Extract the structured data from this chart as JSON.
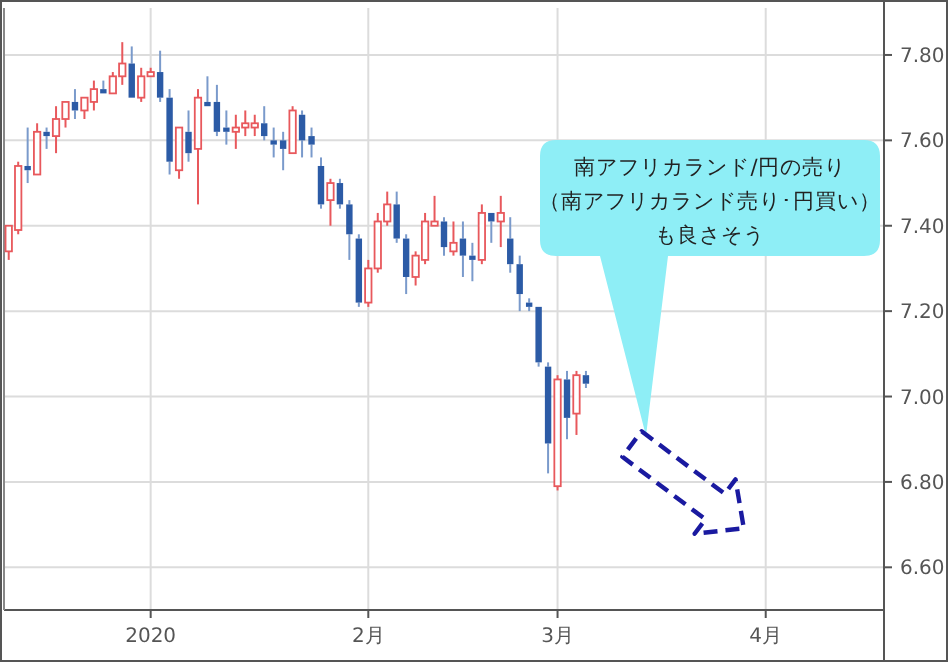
{
  "chart_data": {
    "type": "candlestick",
    "categories": [
      null,
      null,
      null,
      null,
      null,
      null,
      null,
      null,
      null,
      null,
      null,
      null,
      null,
      null,
      null,
      "2020",
      null,
      null,
      null,
      null,
      null,
      null,
      null,
      null,
      null,
      null,
      null,
      null,
      null,
      null,
      null,
      null,
      null,
      null,
      null,
      null,
      null,
      null,
      "2月",
      null,
      null,
      null,
      null,
      null,
      null,
      null,
      null,
      null,
      null,
      null,
      null,
      null,
      null,
      null,
      null,
      null,
      null,
      null,
      "3月",
      null,
      null,
      null,
      null,
      null,
      null,
      null,
      null,
      null,
      null,
      null,
      null,
      null,
      null,
      null,
      null,
      null,
      null,
      null,
      null,
      null,
      "4月",
      null,
      null,
      null,
      null,
      null,
      null,
      null,
      null,
      null,
      null,
      null,
      null
    ],
    "ohlc": [
      [
        7.34,
        7.4,
        7.32,
        7.4
      ],
      [
        7.39,
        7.55,
        7.38,
        7.54
      ],
      [
        7.54,
        7.63,
        7.5,
        7.53
      ],
      [
        7.52,
        7.64,
        7.52,
        7.62
      ],
      [
        7.62,
        7.63,
        7.58,
        7.61
      ],
      [
        7.61,
        7.68,
        7.57,
        7.65
      ],
      [
        7.65,
        7.69,
        7.63,
        7.69
      ],
      [
        7.69,
        7.72,
        7.65,
        7.67
      ],
      [
        7.67,
        7.7,
        7.65,
        7.7
      ],
      [
        7.69,
        7.74,
        7.67,
        7.72
      ],
      [
        7.72,
        7.74,
        7.71,
        7.71
      ],
      [
        7.71,
        7.76,
        7.71,
        7.75
      ],
      [
        7.75,
        7.83,
        7.73,
        7.78
      ],
      [
        7.78,
        7.82,
        7.7,
        7.7
      ],
      [
        7.7,
        7.77,
        7.69,
        7.75
      ],
      [
        7.75,
        7.77,
        7.75,
        7.76
      ],
      [
        7.76,
        7.81,
        7.69,
        7.7
      ],
      [
        7.7,
        7.72,
        7.52,
        7.55
      ],
      [
        7.53,
        7.63,
        7.51,
        7.63
      ],
      [
        7.62,
        7.67,
        7.55,
        7.57
      ],
      [
        7.58,
        7.72,
        7.45,
        7.7
      ],
      [
        7.69,
        7.75,
        7.68,
        7.68
      ],
      [
        7.69,
        7.73,
        7.61,
        7.62
      ],
      [
        7.63,
        7.67,
        7.59,
        7.62
      ],
      [
        7.62,
        7.66,
        7.58,
        7.63
      ],
      [
        7.63,
        7.67,
        7.61,
        7.64
      ],
      [
        7.63,
        7.66,
        7.61,
        7.64
      ],
      [
        7.64,
        7.68,
        7.6,
        7.61
      ],
      [
        7.6,
        7.63,
        7.56,
        7.59
      ],
      [
        7.6,
        7.62,
        7.53,
        7.58
      ],
      [
        7.57,
        7.68,
        7.57,
        7.67
      ],
      [
        7.66,
        7.67,
        7.56,
        7.6
      ],
      [
        7.61,
        7.63,
        7.56,
        7.59
      ],
      [
        7.54,
        7.56,
        7.44,
        7.45
      ],
      [
        7.46,
        7.51,
        7.4,
        7.5
      ],
      [
        7.5,
        7.51,
        7.44,
        7.45
      ],
      [
        7.45,
        7.46,
        7.32,
        7.38
      ],
      [
        7.37,
        7.38,
        7.21,
        7.22
      ],
      [
        7.22,
        7.32,
        7.21,
        7.3
      ],
      [
        7.3,
        7.43,
        7.29,
        7.41
      ],
      [
        7.41,
        7.48,
        7.4,
        7.45
      ],
      [
        7.45,
        7.48,
        7.36,
        7.37
      ],
      [
        7.37,
        7.38,
        7.24,
        7.28
      ],
      [
        7.28,
        7.34,
        7.26,
        7.33
      ],
      [
        7.32,
        7.43,
        7.31,
        7.41
      ],
      [
        7.4,
        7.47,
        7.4,
        7.41
      ],
      [
        7.41,
        7.42,
        7.33,
        7.35
      ],
      [
        7.34,
        7.41,
        7.33,
        7.36
      ],
      [
        7.37,
        7.41,
        7.28,
        7.33
      ],
      [
        7.33,
        7.36,
        7.27,
        7.32
      ],
      [
        7.32,
        7.45,
        7.31,
        7.43
      ],
      [
        7.43,
        7.43,
        7.36,
        7.41
      ],
      [
        7.41,
        7.47,
        7.35,
        7.43
      ],
      [
        7.37,
        7.42,
        7.29,
        7.31
      ],
      [
        7.31,
        7.33,
        7.2,
        7.24
      ],
      [
        7.22,
        7.23,
        7.2,
        7.21
      ],
      [
        7.21,
        7.21,
        7.07,
        7.08
      ],
      [
        7.07,
        7.08,
        6.82,
        6.89
      ],
      [
        6.79,
        7.05,
        6.78,
        7.04
      ],
      [
        7.04,
        7.06,
        6.9,
        6.95
      ],
      [
        6.96,
        7.06,
        6.91,
        7.05
      ],
      [
        7.05,
        7.06,
        7.02,
        7.03
      ],
      null,
      null,
      null,
      null,
      null,
      null,
      null,
      null,
      null,
      null,
      null,
      null,
      null,
      null,
      null,
      null,
      null,
      null,
      null,
      null,
      null,
      null,
      null,
      null,
      null,
      null,
      null,
      null,
      null,
      null,
      null
    ],
    "ylim": [
      6.5,
      7.91
    ],
    "yticks": [
      {
        "value": 6.6,
        "label": "6.60"
      },
      {
        "value": 6.8,
        "label": "6.80"
      },
      {
        "value": 7.0,
        "label": "7.00"
      },
      {
        "value": 7.2,
        "label": "7.20"
      },
      {
        "value": 7.4,
        "label": "7.40"
      },
      {
        "value": 7.6,
        "label": "7.60"
      },
      {
        "value": 7.8,
        "label": "7.80"
      }
    ],
    "grid": true,
    "annotations": [
      "南アフリカランド/円の売り",
      "（南アフリカランド売り･円買い）",
      "も良さそう"
    ]
  }
}
